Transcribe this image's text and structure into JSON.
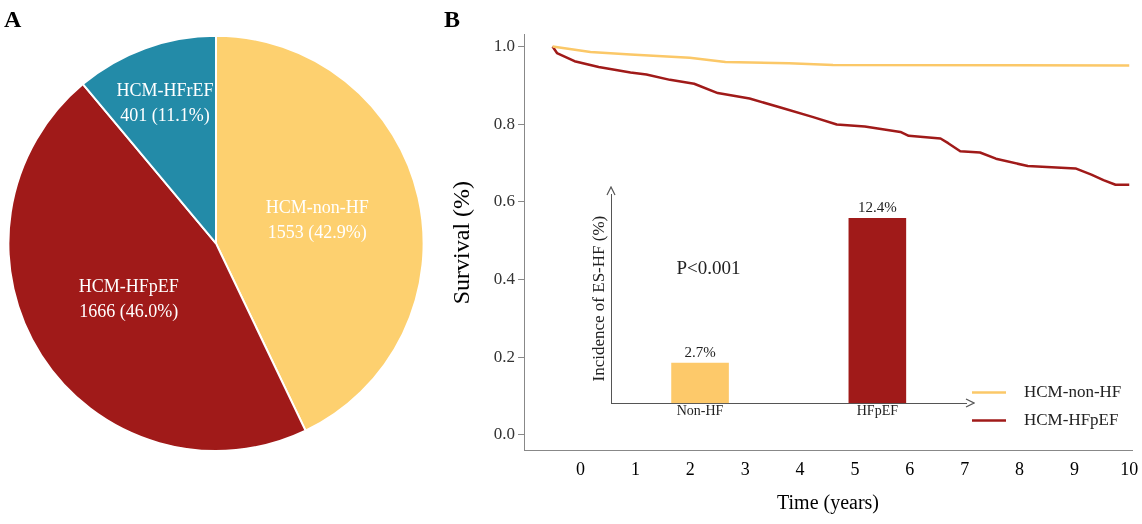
{
  "chart_data": [
    {
      "type": "pie",
      "title": "A",
      "categories": [
        "HCM-non-HF",
        "HCM-HFpEF",
        "HCM-HFrEF"
      ],
      "values": [
        1553,
        1666,
        401
      ],
      "value_labels": [
        "1553 (42.9%)",
        "1666 (46.0%)",
        "401 (11.1%)"
      ],
      "colors": [
        "#fdd06f",
        "#a01a19",
        "#238ba8"
      ],
      "legend": false
    },
    {
      "type": "line",
      "title": "B",
      "xlabel": "Time (years)",
      "ylabel": "Survival (%)",
      "xlim": [
        -1.03,
        10.05
      ],
      "ylim": [
        -0.04,
        1.03
      ],
      "xticks": [
        0,
        1,
        2,
        3,
        4,
        5,
        6,
        7,
        8,
        9,
        10
      ],
      "yticks": [
        {
          "value": 0,
          "label": "0.0"
        },
        0.2,
        0.4,
        0.6,
        0.8,
        {
          "value": 1,
          "label": "1.0"
        }
      ],
      "grid": false,
      "legend": "bottom right",
      "marker": "none",
      "line_style": "solid",
      "series": [
        {
          "name": "HCM-non-HF",
          "color": "#fbc868",
          "x": [
            -0.51,
            0.18,
            0.91,
            1.99,
            2.64,
            3.8,
            4.6,
            10
          ],
          "values": [
            1.0,
            0.986,
            0.979,
            0.971,
            0.96,
            0.957,
            0.952,
            0.951
          ]
        },
        {
          "name": "HCM-HFpEF",
          "color": "#a01a19",
          "x": [
            -0.51,
            -0.43,
            -0.11,
            0.33,
            0.91,
            1.2,
            1.63,
            2.07,
            2.5,
            3.08,
            3.66,
            4.24,
            4.67,
            5.18,
            5.83,
            5.98,
            6.56,
            6.7,
            6.92,
            7.28,
            7.57,
            8.15,
            9.02,
            9.31,
            9.53,
            9.75,
            10
          ],
          "values": [
            1.0,
            0.983,
            0.962,
            0.947,
            0.933,
            0.928,
            0.914,
            0.904,
            0.88,
            0.866,
            0.842,
            0.818,
            0.799,
            0.794,
            0.78,
            0.77,
            0.763,
            0.751,
            0.73,
            0.727,
            0.711,
            0.692,
            0.686,
            0.67,
            0.656,
            0.644,
            0.644
          ]
        }
      ]
    },
    {
      "type": "bar",
      "ylabel": "Incidence of ES-HF (%)",
      "categories": [
        "Non-HF",
        "HFpEF"
      ],
      "values": [
        2.7,
        12.4
      ],
      "value_labels": [
        "2.7%",
        "12.4%"
      ],
      "colors": [
        "#fdc96a",
        "#a01a19"
      ],
      "annotations": [
        "P<0.001"
      ],
      "legend": false
    }
  ]
}
